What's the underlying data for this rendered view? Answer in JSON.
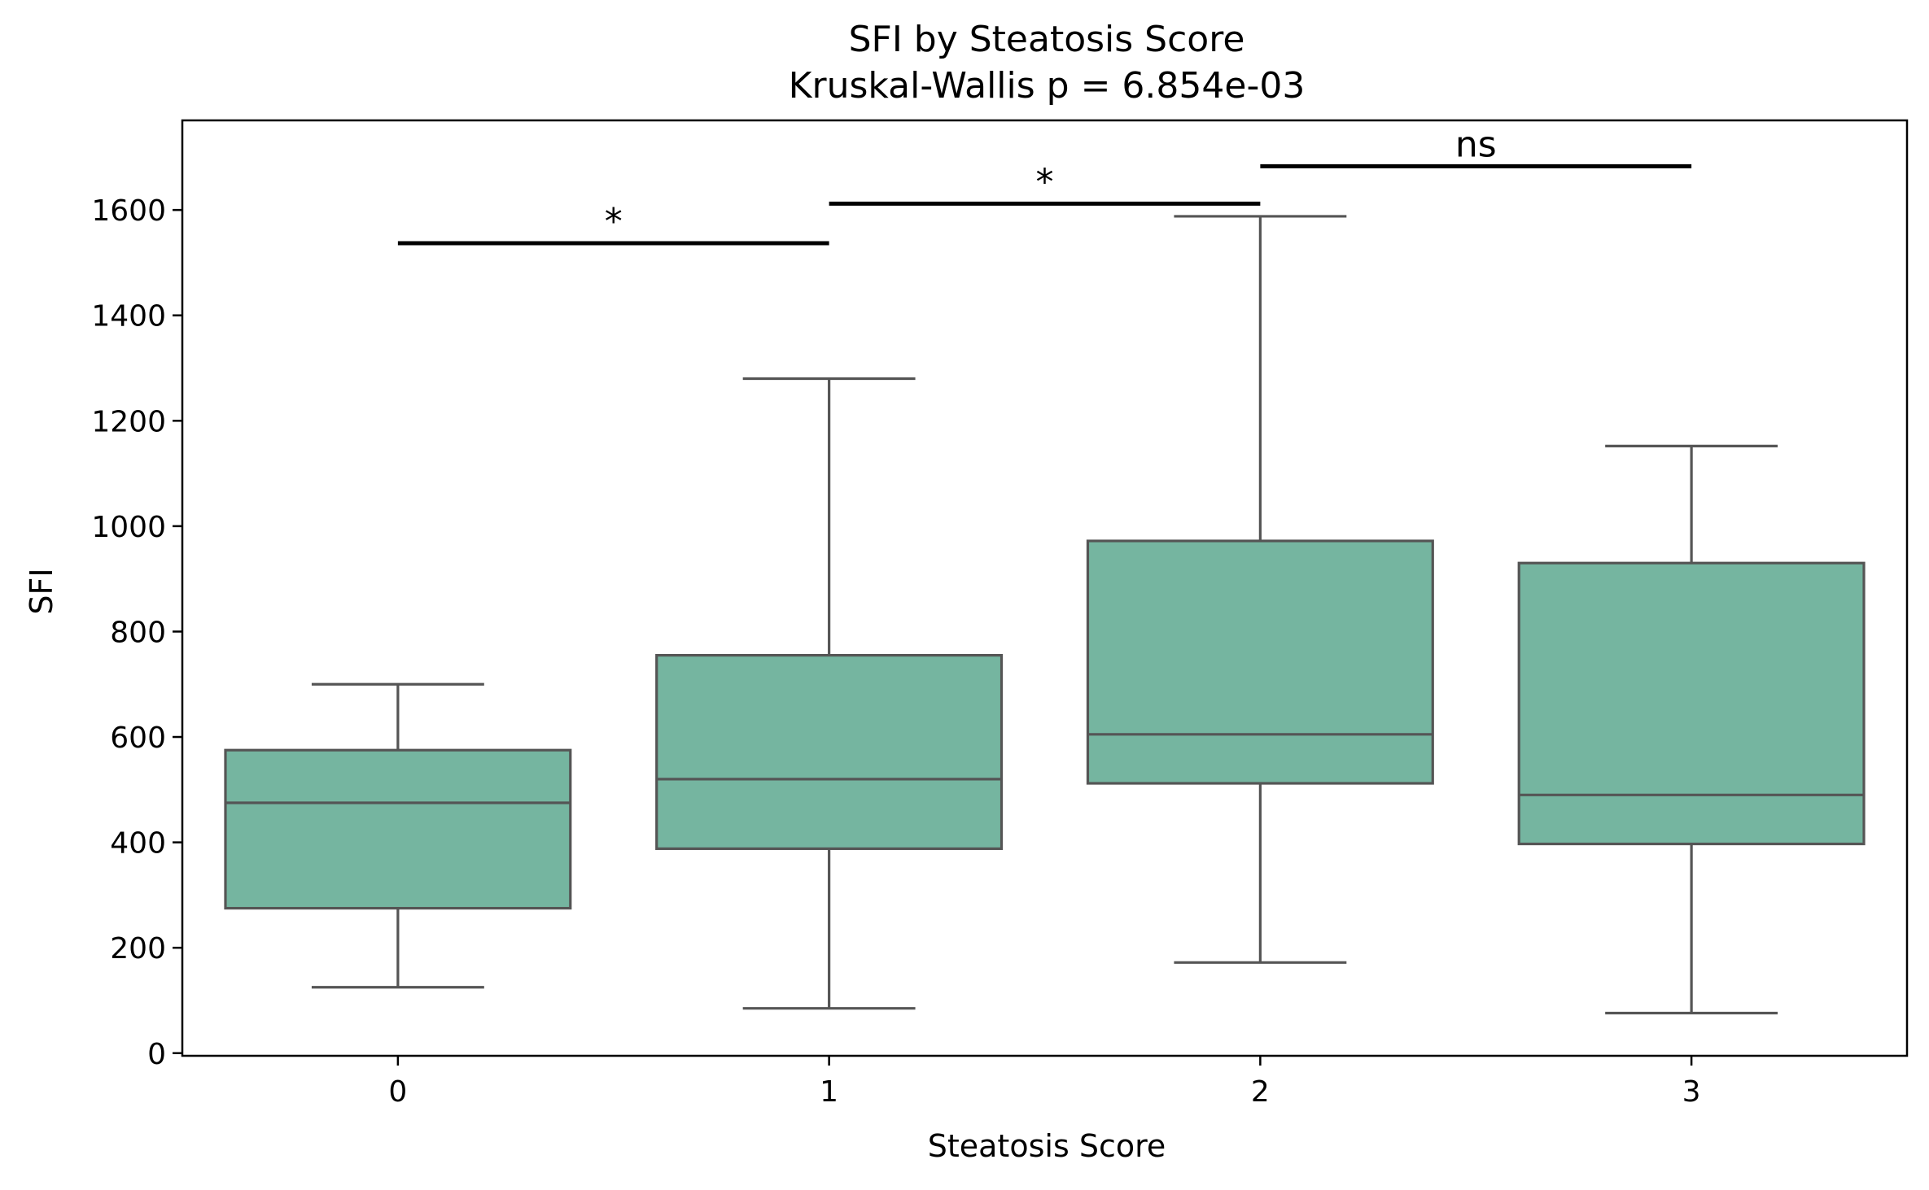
{
  "chart_data": {
    "type": "box",
    "title": "SFI by Steatosis Score",
    "subtitle": "Kruskal-Wallis p = 6.854e-03",
    "xlabel": "Steatosis Score",
    "ylabel": "SFI",
    "ylim": [
      -5,
      1770
    ],
    "yticks": [
      0,
      200,
      400,
      600,
      800,
      1000,
      1200,
      1400,
      1600
    ],
    "categories": [
      "0",
      "1",
      "2",
      "3"
    ],
    "box_color": "#75b5a0",
    "line_color": "#555555",
    "grid": false,
    "boxes": [
      {
        "category": "0",
        "whisker_low": 125,
        "q1": 275,
        "median": 475,
        "q3": 575,
        "whisker_high": 700
      },
      {
        "category": "1",
        "whisker_low": 85,
        "q1": 388,
        "median": 520,
        "q3": 755,
        "whisker_high": 1280
      },
      {
        "category": "2",
        "whisker_low": 172,
        "q1": 512,
        "median": 605,
        "q3": 972,
        "whisker_high": 1588
      },
      {
        "category": "3",
        "whisker_low": 76,
        "q1": 397,
        "median": 490,
        "q3": 930,
        "whisker_high": 1152
      }
    ],
    "comparisons": [
      {
        "from": "0",
        "to": "1",
        "y": 1537,
        "label": "*"
      },
      {
        "from": "1",
        "to": "2",
        "y": 1612,
        "label": "*"
      },
      {
        "from": "2",
        "to": "3",
        "y": 1683,
        "label": "ns"
      }
    ]
  }
}
